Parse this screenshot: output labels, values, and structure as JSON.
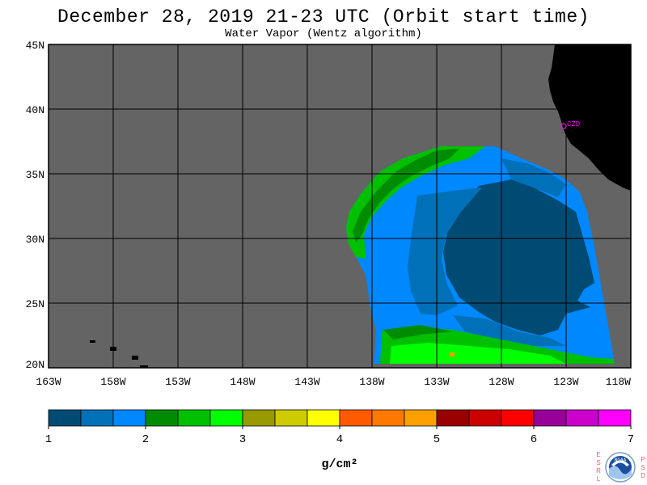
{
  "title": "December 28, 2019  21-23 UTC  (Orbit start time)",
  "subtitle": "Water Vapor (Wentz algorithm)",
  "map": {
    "lat_range": [
      20,
      45
    ],
    "lon_range": [
      -163,
      -118
    ],
    "lat_ticks": [
      "45N",
      "40N",
      "35N",
      "30N",
      "25N",
      "20N"
    ],
    "lon_ticks": [
      "163W",
      "158W",
      "153W",
      "148W",
      "143W",
      "138W",
      "133W",
      "128W",
      "123W",
      "118W"
    ],
    "station_label": "CZD",
    "colors": {
      "ocean_missing": "#646464",
      "land": "#000000",
      "grid": "#000000",
      "station": "#ff00ff"
    }
  },
  "colorbar": {
    "unit_label": "g/cm²",
    "tick_labels": [
      "1",
      "2",
      "3",
      "4",
      "5",
      "6",
      "7"
    ],
    "colors": [
      "#004b73",
      "#0070b8",
      "#0088ff",
      "#008c00",
      "#00c000",
      "#00ff00",
      "#999900",
      "#cccc00",
      "#ffff00",
      "#ff5a00",
      "#ff7800",
      "#ffa000",
      "#990000",
      "#cc0000",
      "#ff0000",
      "#990099",
      "#cc00cc",
      "#ff00ff"
    ]
  },
  "branding": {
    "left_vertical": "ESRL",
    "right_vertical": "PSD",
    "logo_text": "NOAA"
  }
}
